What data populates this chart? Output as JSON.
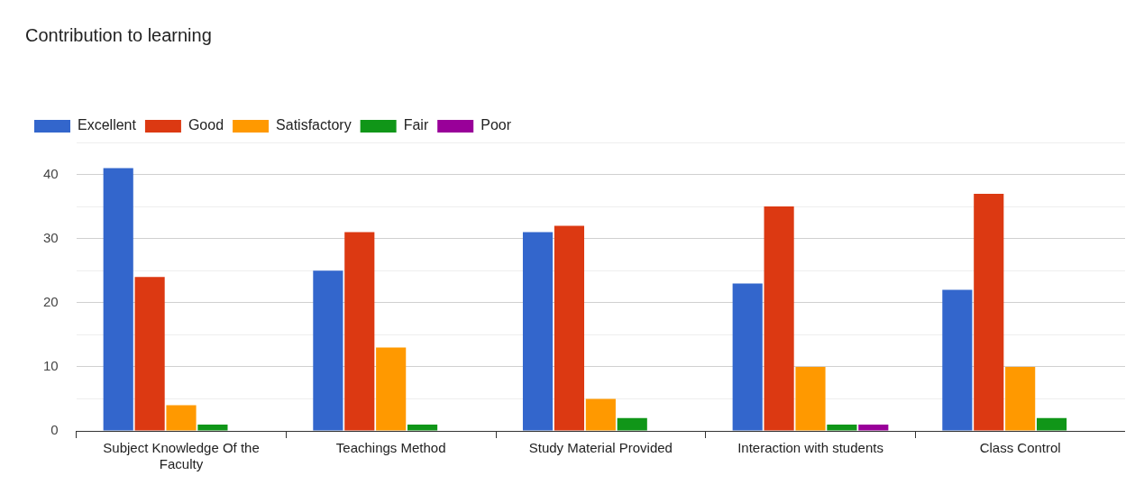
{
  "chart_data": {
    "type": "bar",
    "title": "Contribution to learning",
    "categories": [
      "Subject Knowledge Of the Faculty",
      "Teachings Method",
      "Study Material Provided",
      "Interaction with students",
      "Class Control"
    ],
    "series": [
      {
        "name": "Excellent",
        "color": "#3366cc",
        "values": [
          41,
          25,
          31,
          23,
          22
        ]
      },
      {
        "name": "Good",
        "color": "#dc3912",
        "values": [
          24,
          31,
          32,
          35,
          37
        ]
      },
      {
        "name": "Satisfactory",
        "color": "#ff9900",
        "values": [
          4,
          13,
          5,
          10,
          10
        ]
      },
      {
        "name": "Fair",
        "color": "#109618",
        "values": [
          1,
          1,
          2,
          1,
          2
        ]
      },
      {
        "name": "Poor",
        "color": "#990099",
        "values": [
          0,
          0,
          0,
          1,
          0
        ]
      }
    ],
    "ylim": [
      0,
      45
    ],
    "yticks": [
      0,
      {
        "value": 5,
        "label": null
      },
      10,
      {
        "value": 15,
        "label": null
      },
      20,
      {
        "value": 25,
        "label": null
      },
      30,
      {
        "value": 35,
        "label": null
      },
      40,
      {
        "value": 45,
        "label": null
      }
    ],
    "grid": true,
    "legend": "top left"
  }
}
